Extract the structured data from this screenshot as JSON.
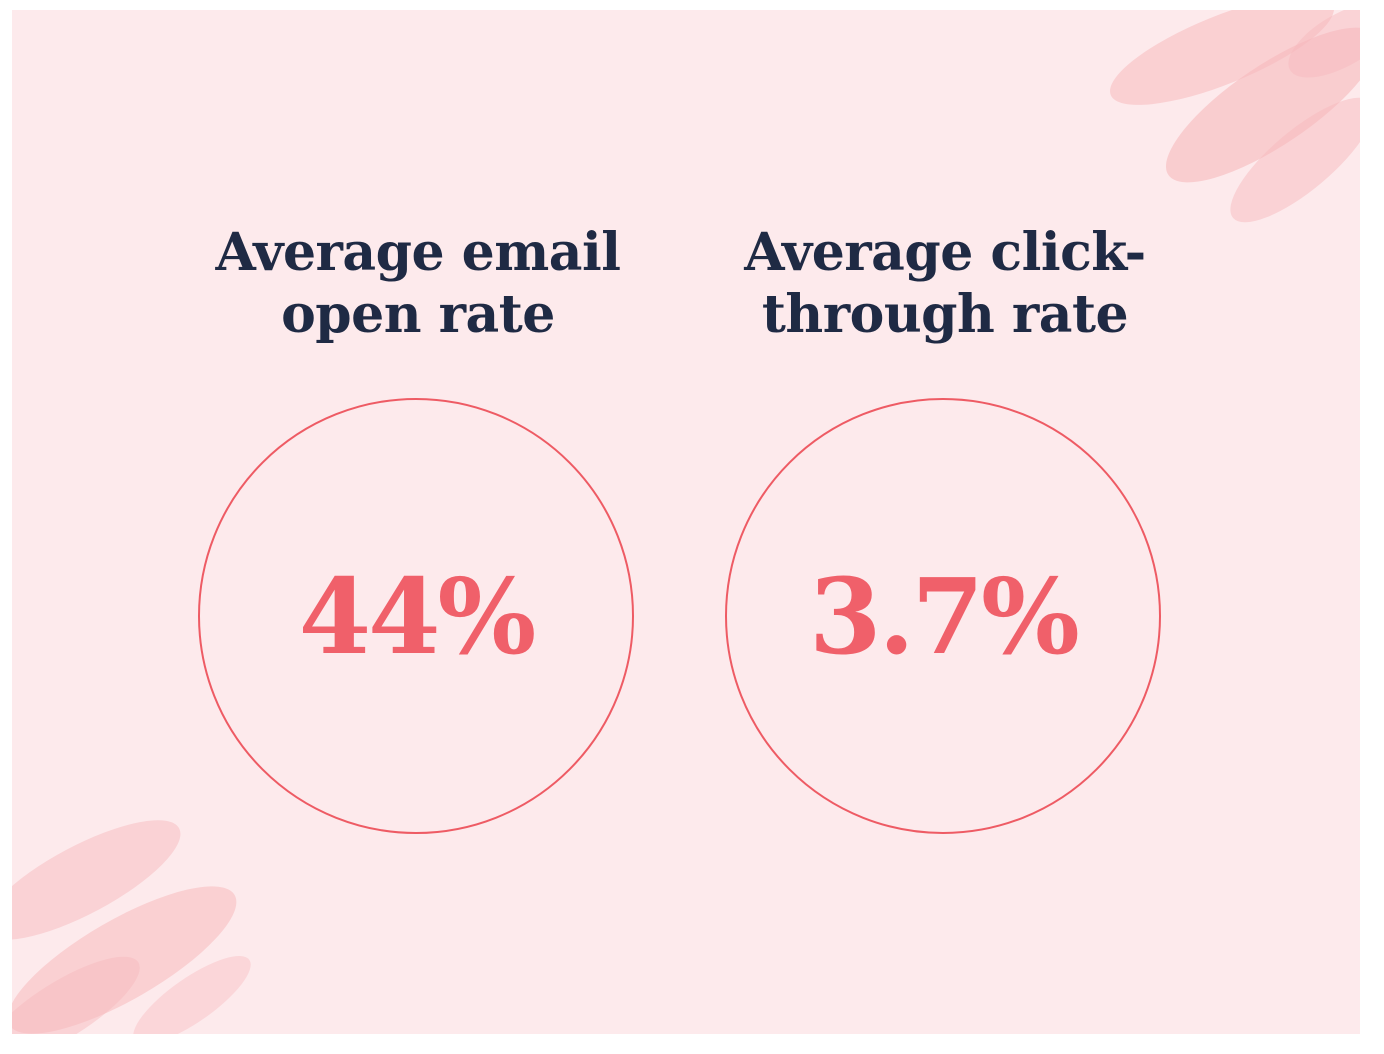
{
  "colors": {
    "background": "#fdeaec",
    "heading": "#1f2a44",
    "accent": "#f0606a",
    "ring": "#ee5b64",
    "brush": "#f7b9bd"
  },
  "decorations": [
    "brush-stroke-top-right",
    "brush-stroke-bottom-left"
  ],
  "stats": [
    {
      "label_lines": [
        "Average email",
        "open rate"
      ],
      "value": "44%",
      "value_percent": 44
    },
    {
      "label_lines": [
        "Average click-",
        "through rate"
      ],
      "value": "3.7%",
      "value_percent": 3.7
    }
  ]
}
